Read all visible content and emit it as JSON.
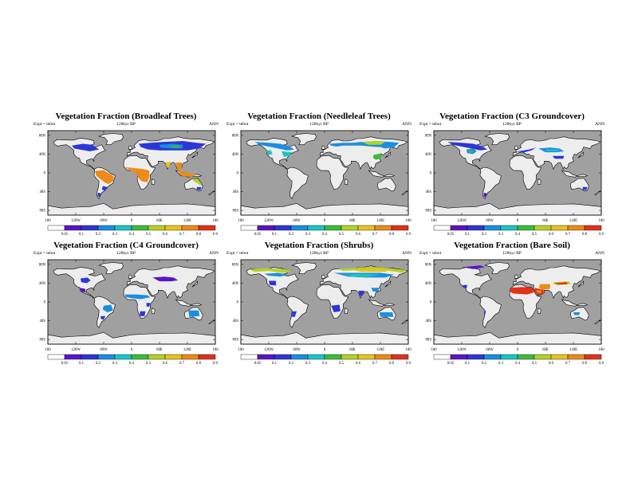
{
  "panels": [
    {
      "title": "Vegetation Fraction (Broadleaf Trees)",
      "subtitle": "128kyr BP",
      "expt": "Expt = tebnt",
      "season": "ANN"
    },
    {
      "title": "Vegetation Fraction (Needleleaf Trees)",
      "subtitle": "128kyr BP",
      "expt": "Expt = tebnt",
      "season": "ANN"
    },
    {
      "title": "Vegetation Fraction (C3 Groundcover)",
      "subtitle": "128kyr BP",
      "expt": "Expt = tebnt",
      "season": "ANN"
    },
    {
      "title": "Vegetation Fraction (C4 Groundcover)",
      "subtitle": "128kyr BP",
      "expt": "Expt = tebnt",
      "season": "ANN"
    },
    {
      "title": "Vegetation Fraction (Shrubs)",
      "subtitle": "128kyr BP",
      "expt": "Expt = tebnt",
      "season": "ANN"
    },
    {
      "title": "Vegetation Fraction (Bare Soil)",
      "subtitle": "128kyr BP",
      "expt": "Expt = tebnt",
      "season": "ANN"
    }
  ],
  "axes": {
    "x_ticks": [
      "180",
      "120W",
      "60W",
      "0",
      "60E",
      "120E",
      "180"
    ],
    "y_ticks": [
      "80N",
      "40N",
      "0",
      "40S",
      "80S"
    ]
  },
  "colorbar": {
    "labels": [
      "0.05",
      "0.1",
      "0.2",
      "0.3",
      "0.4",
      "0.5",
      "0.6",
      "0.7",
      "0.8",
      "0.9"
    ],
    "colors": [
      "#ffffff",
      "#5a14c8",
      "#2c36d8",
      "#1a8ee0",
      "#18c6c4",
      "#3cbc3c",
      "#b4d228",
      "#e8c21e",
      "#ec8a1a",
      "#e03218"
    ]
  },
  "colors": {
    "ocean": "#a0a0a0",
    "land": "#ededed"
  }
}
